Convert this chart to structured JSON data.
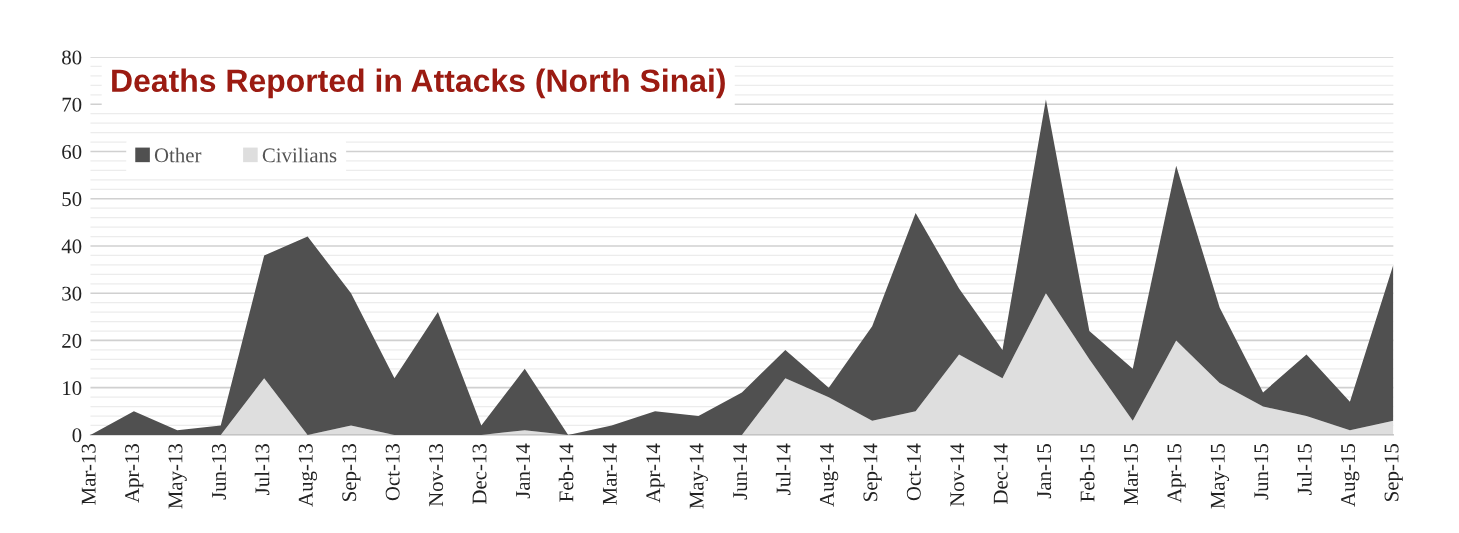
{
  "chart_data": {
    "type": "area",
    "stacked": true,
    "title": "Deaths Reported in Attacks (North Sinai)",
    "categories": [
      "Mar-13",
      "Apr-13",
      "May-13",
      "Jun-13",
      "Jul-13",
      "Aug-13",
      "Sep-13",
      "Oct-13",
      "Nov-13",
      "Dec-13",
      "Jan-14",
      "Feb-14",
      "Mar-14",
      "Apr-14",
      "May-14",
      "Jun-14",
      "Jul-14",
      "Aug-14",
      "Sep-14",
      "Oct-14",
      "Nov-14",
      "Dec-14",
      "Jan-15",
      "Feb-15",
      "Mar-15",
      "Apr-15",
      "May-15",
      "Jun-15",
      "Jul-15",
      "Aug-15",
      "Sep-15"
    ],
    "series": [
      {
        "name": "Civilians",
        "color": "#dedede",
        "values": [
          0,
          0,
          0,
          0,
          12,
          0,
          2,
          0,
          0,
          0,
          1,
          0,
          0,
          0,
          0,
          0,
          12,
          8,
          3,
          5,
          17,
          12,
          30,
          16,
          3,
          20,
          11,
          6,
          4,
          1,
          3
        ]
      },
      {
        "name": "Other",
        "color": "#505050",
        "values": [
          0,
          5,
          1,
          2,
          26,
          42,
          28,
          12,
          26,
          2,
          13,
          0,
          2,
          5,
          4,
          9,
          6,
          2,
          20,
          42,
          14,
          6,
          41,
          6,
          11,
          37,
          16,
          3,
          13,
          6,
          33
        ]
      }
    ],
    "ylim": [
      0,
      80
    ],
    "yticks": [
      0,
      {
        "value": 2,
        "label": null
      },
      {
        "value": 4,
        "label": null
      },
      {
        "value": 6,
        "label": null
      },
      {
        "value": 8,
        "label": null
      },
      10,
      {
        "value": 12,
        "label": null
      },
      {
        "value": 14,
        "label": null
      },
      {
        "value": 16,
        "label": null
      },
      {
        "value": 18,
        "label": null
      },
      20,
      {
        "value": 22,
        "label": null
      },
      {
        "value": 24,
        "label": null
      },
      {
        "value": 26,
        "label": null
      },
      {
        "value": 28,
        "label": null
      },
      30,
      {
        "value": 32,
        "label": null
      },
      {
        "value": 34,
        "label": null
      },
      {
        "value": 36,
        "label": null
      },
      {
        "value": 38,
        "label": null
      },
      40,
      {
        "value": 42,
        "label": null
      },
      {
        "value": 44,
        "label": null
      },
      {
        "value": 46,
        "label": null
      },
      {
        "value": 48,
        "label": null
      },
      50,
      {
        "value": 52,
        "label": null
      },
      {
        "value": 54,
        "label": null
      },
      {
        "value": 56,
        "label": null
      },
      {
        "value": 58,
        "label": null
      },
      60,
      {
        "value": 62,
        "label": null
      },
      {
        "value": 64,
        "label": null
      },
      {
        "value": 66,
        "label": null
      },
      {
        "value": 68,
        "label": null
      },
      70,
      {
        "value": 72,
        "label": null
      },
      {
        "value": 74,
        "label": null
      },
      {
        "value": 76,
        "label": null
      },
      {
        "value": 78,
        "label": null
      },
      80
    ],
    "grid": "y",
    "legend": "top left"
  }
}
